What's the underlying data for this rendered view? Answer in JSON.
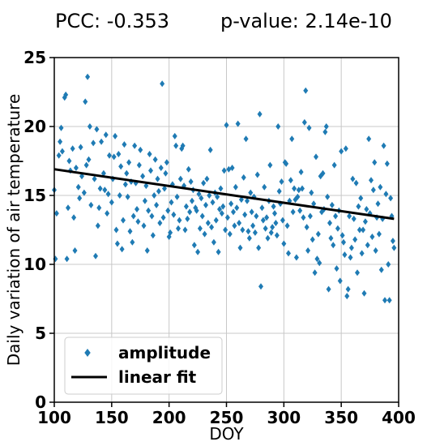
{
  "header": {
    "pcc": "PCC: -0.353",
    "pvalue": "p-value: 2.14e-10"
  },
  "colors": {
    "points": "#1f7bb4",
    "fit": "#000000",
    "grid": "#c8c8c8"
  },
  "chart_data": {
    "type": "scatter",
    "xlabel": "DOY",
    "ylabel": "Daily variation of air temperature",
    "xlim": [
      100,
      400
    ],
    "ylim": [
      0,
      25
    ],
    "xticks": [
      100,
      150,
      200,
      250,
      300,
      350,
      400
    ],
    "yticks": [
      0,
      5,
      10,
      15,
      20,
      25
    ],
    "grid": true,
    "legend_position": "lower-left",
    "legend": [
      {
        "label": "amplitude",
        "marker": "diamond"
      },
      {
        "label": "linear fit",
        "marker": "line"
      }
    ],
    "fit_line": {
      "x": [
        100,
        396
      ],
      "y": [
        16.9,
        13.3
      ]
    },
    "series": [
      {
        "name": "amplitude",
        "points": [
          [
            100,
            15.4
          ],
          [
            101,
            10.4
          ],
          [
            102,
            13.7
          ],
          [
            104,
            17.9
          ],
          [
            105,
            18.9
          ],
          [
            106,
            19.9
          ],
          [
            107,
            18.2
          ],
          [
            109,
            22.1
          ],
          [
            110,
            22.3
          ],
          [
            111,
            10.4
          ],
          [
            112,
            14.1
          ],
          [
            113,
            17.5
          ],
          [
            114,
            16.8
          ],
          [
            116,
            18.4
          ],
          [
            117,
            13.4
          ],
          [
            118,
            11.0
          ],
          [
            119,
            17.0
          ],
          [
            121,
            15.6
          ],
          [
            122,
            14.8
          ],
          [
            123,
            18.5
          ],
          [
            124,
            16.4
          ],
          [
            126,
            15.2
          ],
          [
            127,
            21.8
          ],
          [
            128,
            17.2
          ],
          [
            129,
            23.6
          ],
          [
            130,
            17.6
          ],
          [
            131,
            20.0
          ],
          [
            132,
            14.3
          ],
          [
            134,
            18.8
          ],
          [
            135,
            16.2
          ],
          [
            136,
            10.6
          ],
          [
            137,
            19.8
          ],
          [
            138,
            12.8
          ],
          [
            139,
            14.1
          ],
          [
            140,
            15.5
          ],
          [
            141,
            18.9
          ],
          [
            143,
            16.6
          ],
          [
            144,
            15.4
          ],
          [
            145,
            19.4
          ],
          [
            146,
            13.7
          ],
          [
            147,
            15.1
          ],
          [
            148,
            17.9
          ],
          [
            150,
            14.5
          ],
          [
            151,
            16.2
          ],
          [
            152,
            17.8
          ],
          [
            153,
            19.3
          ],
          [
            154,
            12.5
          ],
          [
            155,
            11.5
          ],
          [
            156,
            18.0
          ],
          [
            157,
            15.0
          ],
          [
            158,
            17.1
          ],
          [
            159,
            11.1
          ],
          [
            160,
            13.2
          ],
          [
            161,
            18.7
          ],
          [
            162,
            15.8
          ],
          [
            163,
            16.6
          ],
          [
            164,
            14.9
          ],
          [
            165,
            17.4
          ],
          [
            166,
            12.4
          ],
          [
            167,
            16.0
          ],
          [
            168,
            11.6
          ],
          [
            169,
            13.5
          ],
          [
            170,
            18.6
          ],
          [
            171,
            15.9
          ],
          [
            172,
            14.0
          ],
          [
            173,
            13.1
          ],
          [
            174,
            17.2
          ],
          [
            175,
            18.3
          ],
          [
            177,
            16.4
          ],
          [
            178,
            12.8
          ],
          [
            179,
            14.6
          ],
          [
            180,
            15.7
          ],
          [
            181,
            11.0
          ],
          [
            182,
            13.9
          ],
          [
            183,
            18.0
          ],
          [
            184,
            16.8
          ],
          [
            185,
            13.5
          ],
          [
            186,
            12.1
          ],
          [
            187,
            15.0
          ],
          [
            188,
            17.6
          ],
          [
            189,
            14.3
          ],
          [
            190,
            16.2
          ],
          [
            191,
            15.3
          ],
          [
            192,
            13.0
          ],
          [
            193,
            17.0
          ],
          [
            194,
            23.1
          ],
          [
            195,
            13.4
          ],
          [
            196,
            15.5
          ],
          [
            197,
            16.6
          ],
          [
            198,
            17.4
          ],
          [
            199,
            13.9
          ],
          [
            200,
            12.0
          ],
          [
            201,
            12.3
          ],
          [
            202,
            14.5
          ],
          [
            203,
            15.8
          ],
          [
            204,
            13.6
          ],
          [
            205,
            19.3
          ],
          [
            206,
            18.6
          ],
          [
            207,
            14.9
          ],
          [
            208,
            12.6
          ],
          [
            209,
            13.2
          ],
          [
            210,
            16.2
          ],
          [
            211,
            18.4
          ],
          [
            212,
            18.6
          ],
          [
            213,
            15.7
          ],
          [
            214,
            12.5
          ],
          [
            215,
            14.2
          ],
          [
            216,
            13.3
          ],
          [
            217,
            16.9
          ],
          [
            218,
            13.8
          ],
          [
            219,
            16.0
          ],
          [
            220,
            14.6
          ],
          [
            221,
            15.4
          ],
          [
            222,
            11.4
          ],
          [
            223,
            14.1
          ],
          [
            224,
            13.9
          ],
          [
            225,
            10.9
          ],
          [
            226,
            15.1
          ],
          [
            227,
            12.6
          ],
          [
            228,
            14.8
          ],
          [
            229,
            13.5
          ],
          [
            230,
            15.9
          ],
          [
            231,
            12.2
          ],
          [
            232,
            14.3
          ],
          [
            233,
            16.2
          ],
          [
            234,
            13.0
          ],
          [
            235,
            15.0
          ],
          [
            236,
            18.3
          ],
          [
            237,
            12.7
          ],
          [
            238,
            14.5
          ],
          [
            239,
            11.6
          ],
          [
            240,
            15.2
          ],
          [
            241,
            13.2
          ],
          [
            242,
            14.9
          ],
          [
            243,
            10.9
          ],
          [
            244,
            14.0
          ],
          [
            245,
            15.5
          ],
          [
            246,
            13.7
          ],
          [
            247,
            14.2
          ],
          [
            248,
            16.8
          ],
          [
            249,
            12.5
          ],
          [
            250,
            20.1
          ],
          [
            251,
            13.4
          ],
          [
            252,
            16.9
          ],
          [
            253,
            12.2
          ],
          [
            254,
            14.4
          ],
          [
            255,
            17.0
          ],
          [
            256,
            13.8
          ],
          [
            257,
            12.8
          ],
          [
            258,
            15.6
          ],
          [
            259,
            14.1
          ],
          [
            260,
            20.2
          ],
          [
            261,
            13.0
          ],
          [
            262,
            11.2
          ],
          [
            263,
            14.7
          ],
          [
            264,
            12.5
          ],
          [
            265,
            16.3
          ],
          [
            266,
            13.6
          ],
          [
            267,
            19.1
          ],
          [
            268,
            14.6
          ],
          [
            269,
            12.4
          ],
          [
            270,
            11.9
          ],
          [
            271,
            15.2
          ],
          [
            272,
            13.8
          ],
          [
            273,
            12.8
          ],
          [
            274,
            14.9
          ],
          [
            275,
            12.3
          ],
          [
            276,
            13.5
          ],
          [
            277,
            16.5
          ],
          [
            278,
            11.2
          ],
          [
            279,
            20.9
          ],
          [
            280,
            8.4
          ],
          [
            281,
            14.1
          ],
          [
            282,
            13.2
          ],
          [
            283,
            15.6
          ],
          [
            284,
            12.6
          ],
          [
            285,
            13.4
          ],
          [
            286,
            11.9
          ],
          [
            287,
            14.6
          ],
          [
            288,
            17.2
          ],
          [
            289,
            12.3
          ],
          [
            290,
            12.7
          ],
          [
            291,
            14.2
          ],
          [
            292,
            13.7
          ],
          [
            293,
            13.0
          ],
          [
            294,
            12.1
          ],
          [
            295,
            20.0
          ],
          [
            296,
            15.3
          ],
          [
            297,
            14.4
          ],
          [
            298,
            16.0
          ],
          [
            299,
            13.2
          ],
          [
            300,
            11.5
          ],
          [
            301,
            17.4
          ],
          [
            302,
            17.3
          ],
          [
            303,
            12.8
          ],
          [
            304,
            10.8
          ],
          [
            305,
            14.6
          ],
          [
            306,
            16.1
          ],
          [
            307,
            19.1
          ],
          [
            308,
            13.8
          ],
          [
            309,
            15.5
          ],
          [
            310,
            14.7
          ],
          [
            311,
            10.5
          ],
          [
            312,
            14.9
          ],
          [
            313,
            15.4
          ],
          [
            314,
            13.9
          ],
          [
            315,
            16.7
          ],
          [
            316,
            15.5
          ],
          [
            317,
            13.4
          ],
          [
            318,
            20.3
          ],
          [
            319,
            22.6
          ],
          [
            320,
            12.7
          ],
          [
            321,
            11.0
          ],
          [
            322,
            19.9
          ],
          [
            323,
            13.5
          ],
          [
            324,
            15.2
          ],
          [
            325,
            11.8
          ],
          [
            326,
            14.4
          ],
          [
            327,
            9.4
          ],
          [
            328,
            17.8
          ],
          [
            329,
            10.4
          ],
          [
            330,
            12.2
          ],
          [
            331,
            10.1
          ],
          [
            332,
            16.4
          ],
          [
            333,
            13.8
          ],
          [
            334,
            16.6
          ],
          [
            335,
            14.0
          ],
          [
            336,
            19.6
          ],
          [
            337,
            20.0
          ],
          [
            338,
            14.9
          ],
          [
            339,
            8.2
          ],
          [
            340,
            13.0
          ],
          [
            341,
            11.9
          ],
          [
            342,
            14.3
          ],
          [
            343,
            11.4
          ],
          [
            344,
            17.2
          ],
          [
            345,
            13.5
          ],
          [
            346,
            9.7
          ],
          [
            347,
            12.6
          ],
          [
            348,
            13.9
          ],
          [
            349,
            8.8
          ],
          [
            350,
            18.2
          ],
          [
            351,
            12.1
          ],
          [
            352,
            11.6
          ],
          [
            353,
            10.7
          ],
          [
            354,
            18.4
          ],
          [
            355,
            7.7
          ],
          [
            356,
            8.2
          ],
          [
            357,
            13.5
          ],
          [
            358,
            10.5
          ],
          [
            359,
            11.2
          ],
          [
            360,
            16.2
          ],
          [
            361,
            13.3
          ],
          [
            362,
            11.8
          ],
          [
            363,
            15.9
          ],
          [
            364,
            9.4
          ],
          [
            365,
            14.2
          ],
          [
            366,
            12.5
          ],
          [
            367,
            14.8
          ],
          [
            368,
            10.8
          ],
          [
            369,
            12.5
          ],
          [
            370,
            7.9
          ],
          [
            371,
            13.1
          ],
          [
            372,
            14.0
          ],
          [
            373,
            11.4
          ],
          [
            374,
            19.1
          ],
          [
            375,
            13.7
          ],
          [
            376,
            16.1
          ],
          [
            377,
            12.0
          ],
          [
            378,
            15.4
          ],
          [
            379,
            17.4
          ],
          [
            380,
            11.0
          ],
          [
            381,
            13.4
          ],
          [
            382,
            14.4
          ],
          [
            383,
            12.2
          ],
          [
            384,
            15.6
          ],
          [
            385,
            9.6
          ],
          [
            386,
            13.3
          ],
          [
            387,
            18.6
          ],
          [
            388,
            7.4
          ],
          [
            389,
            15.1
          ],
          [
            390,
            17.3
          ],
          [
            391,
            10.0
          ],
          [
            392,
            7.4
          ],
          [
            393,
            14.8
          ],
          [
            394,
            13.5
          ],
          [
            395,
            11.7
          ],
          [
            396,
            11.2
          ]
        ]
      }
    ]
  }
}
